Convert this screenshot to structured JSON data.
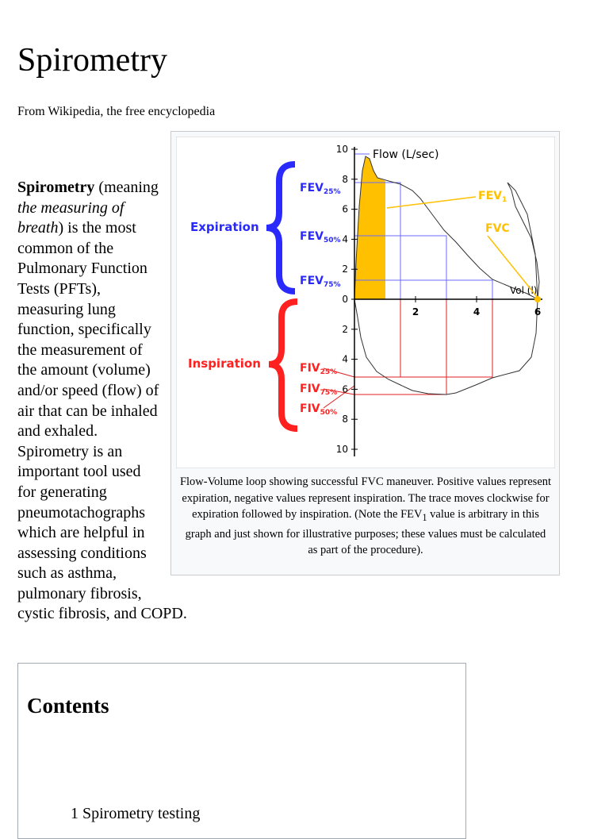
{
  "header": {
    "title": "Spirometry",
    "tagline": "From Wikipedia, the free encyclopedia"
  },
  "paragraph": {
    "term": "Spirometry",
    "text_before": " (meaning ",
    "emphasis": "the measuring of breath",
    "text_after": ") is the most common of the Pulmonary Function Tests (PFTs), measuring lung function, specifically the measurement of the amount (volume) and/or speed (flow) of air that can be inhaled and exhaled. Spirometry is an important tool used for generating pneumotachographs which are helpful in assessing conditions such as asthma, pulmonary fibrosis, cystic fibrosis, and COPD."
  },
  "figure": {
    "flow_axis_label": "Flow (L/sec)",
    "volume_axis_label": "Vol (l)",
    "expiration_ticks": [
      10,
      8,
      6,
      4,
      2,
      0
    ],
    "inspiration_ticks": [
      2,
      4,
      6,
      8,
      10
    ],
    "volume_ticks": [
      2,
      4,
      6
    ],
    "expiration_label": "Expiration",
    "inspiration_label": "Inspiration",
    "fev_labels": [
      {
        "main": "FEV",
        "sub": "25%"
      },
      {
        "main": "FEV",
        "sub": "50%"
      },
      {
        "main": "FEV",
        "sub": "75%"
      }
    ],
    "fiv_labels": [
      {
        "main": "FIV",
        "sub": "25%"
      },
      {
        "main": "FIV",
        "sub": "75%"
      },
      {
        "main": "FIV",
        "sub": "50%"
      }
    ],
    "fev1_label": {
      "main": "FEV",
      "sub": "1"
    },
    "fvc_label": "FVC",
    "caption": {
      "text_before": "Flow-Volume loop showing successful FVC maneuver. Positive values represent expiration, negative values represent inspiration. The trace moves clockwise for expiration followed by inspiration. (Note the FEV",
      "subscript": "1",
      "text_after": " value is arbitrary in this graph and just shown for illustrative purposes; these values must be calculated as part of the procedure)."
    }
  },
  "contents": {
    "title": "Contents",
    "items": [
      {
        "number": "1",
        "text": "Spirometry testing"
      }
    ]
  }
}
